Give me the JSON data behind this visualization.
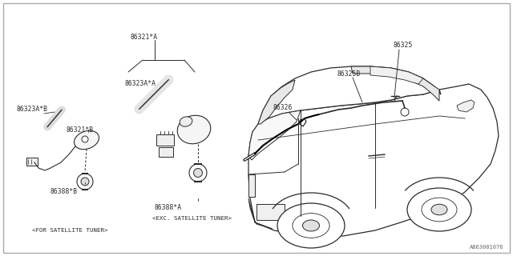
{
  "bg_color": "#ffffff",
  "line_color": "#2a2a2a",
  "text_color": "#2a2a2a",
  "diagram_number": "A863001076",
  "label_86321A": "86321*A",
  "label_86323A_A": "86323A*A",
  "label_86323A_B": "86323A*B",
  "label_86321B": "86321*B",
  "label_86388B": "86388*B",
  "label_86388A": "86388*A",
  "label_86325": "86325",
  "label_86325B": "86325B",
  "label_86326": "86326",
  "label_sat": "<FOR SATELLITE TUNER>",
  "label_exc": "<EXC. SATELLITE TUNER>",
  "font_size": 5.8
}
